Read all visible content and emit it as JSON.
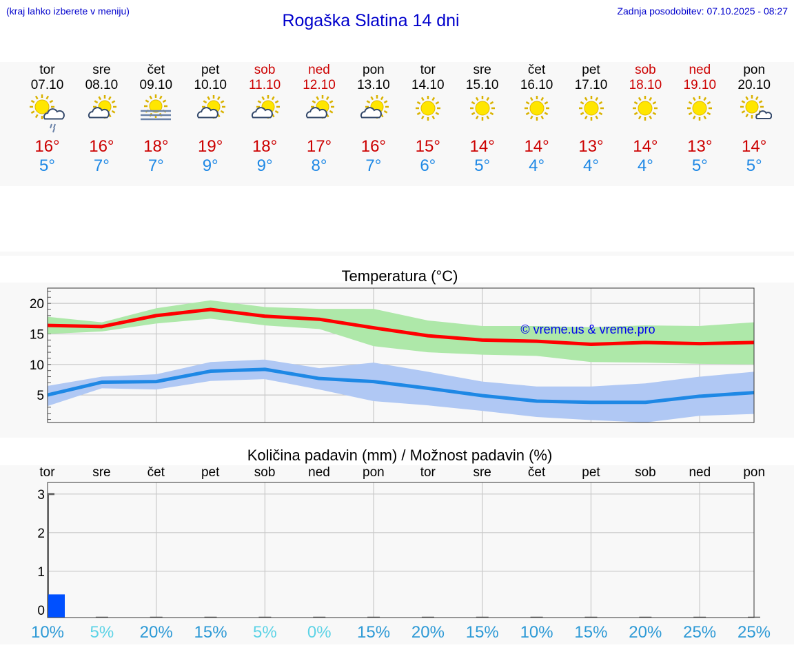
{
  "header": {
    "menu_hint": "(kraj lahko izberete v meniju)",
    "title": "Rogaška Slatina 14 dni",
    "updated": "Zadnja posodobitev: 07.10.2025 - 08:27"
  },
  "days": [
    {
      "name": "tor",
      "date": "07.10",
      "weekend": false,
      "icon": "sun-cloud-rain-icon",
      "tmax": "16°",
      "tmin": "5°"
    },
    {
      "name": "sre",
      "date": "08.10",
      "weekend": false,
      "icon": "sun-cloud-icon",
      "tmax": "16°",
      "tmin": "7°"
    },
    {
      "name": "čet",
      "date": "09.10",
      "weekend": false,
      "icon": "sun-fog-icon",
      "tmax": "18°",
      "tmin": "7°"
    },
    {
      "name": "pet",
      "date": "10.10",
      "weekend": false,
      "icon": "sun-cloud-icon",
      "tmax": "19°",
      "tmin": "9°"
    },
    {
      "name": "sob",
      "date": "11.10",
      "weekend": true,
      "icon": "sun-cloud-icon",
      "tmax": "18°",
      "tmin": "9°"
    },
    {
      "name": "ned",
      "date": "12.10",
      "weekend": true,
      "icon": "sun-cloud-icon",
      "tmax": "17°",
      "tmin": "8°"
    },
    {
      "name": "pon",
      "date": "13.10",
      "weekend": false,
      "icon": "sun-cloud-icon",
      "tmax": "16°",
      "tmin": "7°"
    },
    {
      "name": "tor",
      "date": "14.10",
      "weekend": false,
      "icon": "sun-icon",
      "tmax": "15°",
      "tmin": "6°"
    },
    {
      "name": "sre",
      "date": "15.10",
      "weekend": false,
      "icon": "sun-icon",
      "tmax": "14°",
      "tmin": "5°"
    },
    {
      "name": "čet",
      "date": "16.10",
      "weekend": false,
      "icon": "sun-icon",
      "tmax": "14°",
      "tmin": "4°"
    },
    {
      "name": "pet",
      "date": "17.10",
      "weekend": false,
      "icon": "sun-icon",
      "tmax": "13°",
      "tmin": "4°"
    },
    {
      "name": "sob",
      "date": "18.10",
      "weekend": true,
      "icon": "sun-icon",
      "tmax": "14°",
      "tmin": "4°"
    },
    {
      "name": "ned",
      "date": "19.10",
      "weekend": true,
      "icon": "sun-icon",
      "tmax": "13°",
      "tmin": "5°"
    },
    {
      "name": "pon",
      "date": "20.10",
      "weekend": false,
      "icon": "sun-small-cloud-icon",
      "tmax": "14°",
      "tmin": "5°"
    }
  ],
  "colors": {
    "max": "#ff0000",
    "min": "#1e88e5",
    "max_band": "#aee8a9",
    "min_band": "#b0c8f4",
    "bar": "#0050ff",
    "weekend": "#cc0000"
  },
  "chart_data": [
    {
      "type": "line",
      "title": "Temperatura (°C)",
      "watermark": "© vreme.us & vreme.pro",
      "ylim": [
        0.5,
        22.5
      ],
      "yticks": [
        5,
        10,
        15,
        20
      ],
      "series": [
        {
          "name": "max",
          "x": [
            0,
            1,
            2,
            3,
            4,
            5,
            6,
            7,
            8,
            9,
            10,
            11,
            12,
            13
          ],
          "values": [
            16.4,
            16.2,
            18,
            19,
            17.9,
            17.4,
            16,
            14.7,
            14,
            13.8,
            13.3,
            13.6,
            13.4,
            13.6
          ]
        },
        {
          "name": "min",
          "x": [
            0,
            1,
            2,
            3,
            4,
            5,
            6,
            7,
            8,
            9,
            10,
            11,
            12,
            13
          ],
          "values": [
            5,
            7.1,
            7.2,
            8.9,
            9.2,
            7.7,
            7.2,
            6.1,
            4.9,
            4,
            3.8,
            3.8,
            4.8,
            5.4
          ]
        }
      ],
      "bands": [
        {
          "name": "max_range",
          "low": [
            15,
            15.4,
            16.7,
            17.5,
            16.4,
            15.8,
            13,
            12,
            11.6,
            11.4,
            10.4,
            10.3,
            10.1,
            10
          ],
          "high": [
            17.8,
            16.9,
            19.2,
            20.5,
            19.4,
            19.1,
            19.1,
            17.2,
            16.3,
            16.3,
            16.1,
            16.4,
            16.3,
            16.9
          ]
        },
        {
          "name": "min_range",
          "low": [
            3.2,
            6.1,
            5.9,
            7.3,
            7.6,
            5.9,
            4,
            3.3,
            2.4,
            1.4,
            0.9,
            0.5,
            1.6,
            1.9
          ],
          "high": [
            6.5,
            8,
            8.4,
            10.4,
            10.8,
            9.4,
            10.3,
            8.8,
            7.2,
            6.4,
            6.4,
            6.9,
            8,
            8.8
          ]
        }
      ]
    },
    {
      "type": "bar",
      "title": "Količina padavin (mm) / Možnost padavin (%)",
      "categories": [
        "tor",
        "sre",
        "čet",
        "pet",
        "sob",
        "ned",
        "pon",
        "tor",
        "sre",
        "čet",
        "pet",
        "sob",
        "ned",
        "pon"
      ],
      "ylim": [
        -0.2,
        3.3
      ],
      "yticks": [
        0,
        1,
        2,
        3
      ],
      "values": [
        0.4,
        0,
        0,
        0,
        0,
        0,
        0,
        0,
        0,
        0,
        0,
        0,
        0,
        0
      ],
      "probability": [
        "10%",
        "5%",
        "20%",
        "15%",
        "5%",
        "0%",
        "15%",
        "20%",
        "15%",
        "10%",
        "15%",
        "20%",
        "25%",
        "25%"
      ],
      "probability_colors": [
        "#2e9ad6",
        "#5dd3e6",
        "#2e9ad6",
        "#2e9ad6",
        "#5dd3e6",
        "#5dd3e6",
        "#2e9ad6",
        "#2e9ad6",
        "#2e9ad6",
        "#2e9ad6",
        "#2e9ad6",
        "#2e9ad6",
        "#2e9ad6",
        "#2e9ad6"
      ]
    }
  ]
}
